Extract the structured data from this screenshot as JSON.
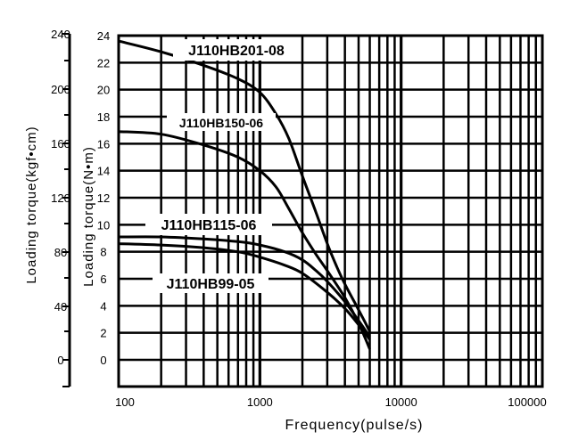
{
  "chart_data": {
    "type": "line",
    "x_scale": "log",
    "xlim": [
      100,
      100000
    ],
    "ylim": [
      0,
      24
    ],
    "xlabel": "Frequency(pulse/s)",
    "ylabel": "Loading torque(N•m)",
    "ylabel2": "Loading torque(kgf•cm)",
    "x_ticks": [
      "100",
      "1000",
      "10000",
      "100000"
    ],
    "y_ticks": [
      "0",
      "2",
      "4",
      "6",
      "8",
      "10",
      "12",
      "14",
      "16",
      "18",
      "20",
      "22",
      "24"
    ],
    "y2_ticks": [
      "0",
      "40",
      "80",
      "120",
      "160",
      "200",
      "240"
    ],
    "grid": true,
    "series": [
      {
        "name": "J110HB201-08",
        "x": [
          100,
          200,
          400,
          700,
          1000,
          1300,
          1600,
          2000,
          2500,
          3000,
          3500,
          4000,
          5000,
          6000
        ],
        "y": [
          23.6,
          22.8,
          21.8,
          20.8,
          19.8,
          18.2,
          16.4,
          13.6,
          10.9,
          8.6,
          6.9,
          5.6,
          3.7,
          2.1
        ]
      },
      {
        "name": "J110HB150-06",
        "x": [
          100,
          200,
          400,
          700,
          1000,
          1300,
          1600,
          2000,
          2500,
          3000,
          4000,
          5000,
          6000
        ],
        "y": [
          16.9,
          16.7,
          15.9,
          15.0,
          14.0,
          12.8,
          11.2,
          9.4,
          7.8,
          6.6,
          4.6,
          2.7,
          0.8
        ]
      },
      {
        "name": "J110HB115-06",
        "x": [
          100,
          200,
          400,
          700,
          1000,
          1500,
          2000,
          2500,
          3000,
          4000,
          5000,
          6000
        ],
        "y": [
          9.1,
          9.1,
          8.95,
          8.75,
          8.5,
          8.0,
          7.4,
          6.6,
          5.8,
          4.3,
          2.9,
          1.7
        ]
      },
      {
        "name": "J110HB99-05",
        "x": [
          100,
          200,
          400,
          700,
          1000,
          1500,
          2000,
          3000,
          4000,
          5000,
          6000
        ],
        "y": [
          8.6,
          8.5,
          8.3,
          8.0,
          7.6,
          7.0,
          6.4,
          5.0,
          3.8,
          2.6,
          1.5
        ]
      }
    ]
  }
}
